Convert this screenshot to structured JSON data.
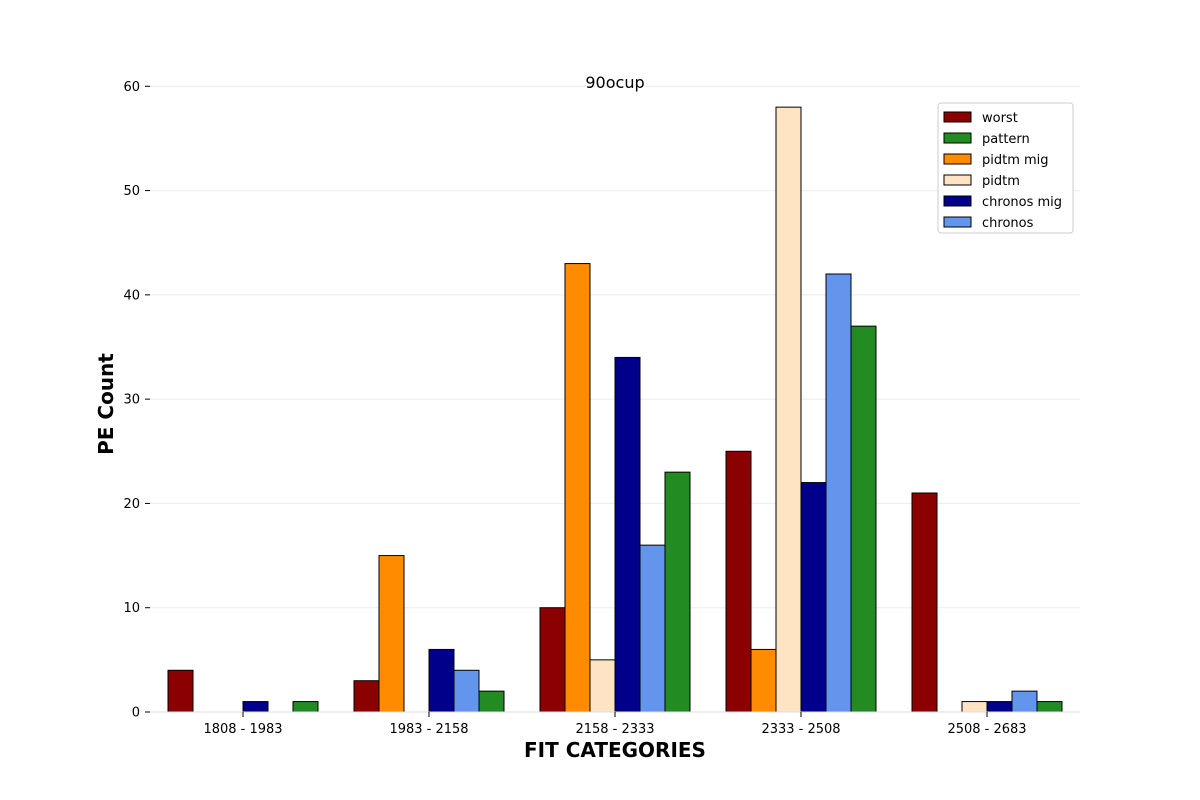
{
  "chart_data": {
    "type": "bar",
    "title": "90ocup",
    "xlabel": "FIT CATEGORIES",
    "ylabel": "PE Count",
    "ylim": [
      0,
      63
    ],
    "yticks": [
      0,
      10,
      20,
      30,
      40,
      50,
      60
    ],
    "grid": true,
    "legend_position": "top-right",
    "categories": [
      "1808 - 1983",
      "1983 - 2158",
      "2158 - 2333",
      "2333 - 2508",
      "2508 - 2683"
    ],
    "series": [
      {
        "name": "worst",
        "color": "#8b0000",
        "values": [
          4,
          3,
          10,
          25,
          21
        ]
      },
      {
        "name": "pidtm mig",
        "color": "#ff8c00",
        "values": [
          0,
          15,
          43,
          6,
          0
        ]
      },
      {
        "name": "pidtm",
        "color": "#ffe4c4",
        "values": [
          0,
          0,
          5,
          58,
          1
        ]
      },
      {
        "name": "chronos mig",
        "color": "#00008b",
        "values": [
          1,
          6,
          34,
          22,
          1
        ]
      },
      {
        "name": "chronos",
        "color": "#6495ed",
        "values": [
          0,
          4,
          16,
          42,
          2
        ]
      },
      {
        "name": "pattern",
        "color": "#228b22",
        "values": [
          1,
          2,
          23,
          37,
          1
        ]
      }
    ],
    "legend_order": [
      "worst",
      "pattern",
      "pidtm mig",
      "pidtm",
      "chronos mig",
      "chronos"
    ]
  }
}
